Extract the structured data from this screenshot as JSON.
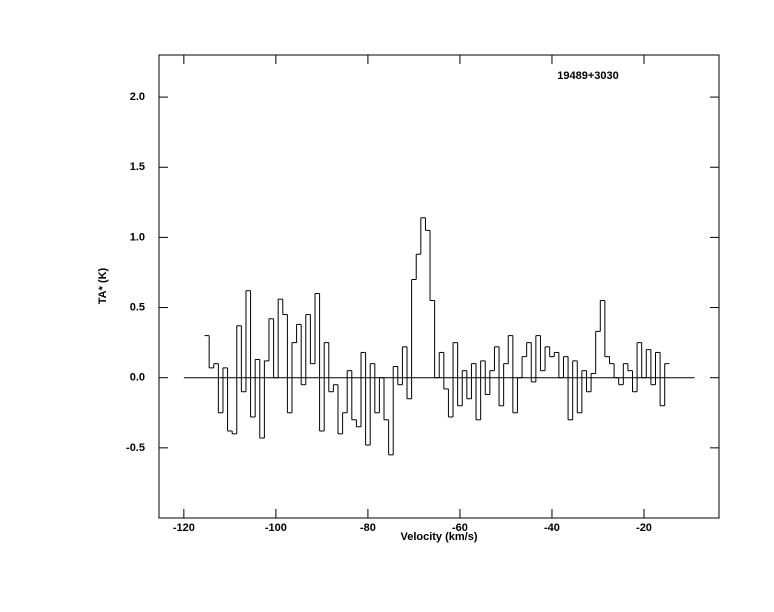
{
  "chart_data": {
    "type": "step",
    "title": "19489+3030",
    "x_label": "Velocity (km/s)",
    "y_label": "TA* (K)",
    "xlim": [
      -125.4,
      -3.7
    ],
    "ylim": [
      -1.0,
      2.3
    ],
    "xticks": [
      -120,
      -100,
      -80,
      -60,
      -40,
      -20
    ],
    "yticks": [
      -0.5,
      {
        "value": 0,
        "label": "0.0"
      },
      0.5,
      {
        "value": 1,
        "label": "1.0"
      },
      1.5,
      {
        "value": 2,
        "label": "2.0"
      }
    ],
    "hline": {
      "y": 0,
      "x": [
        -120,
        -9
      ]
    },
    "color": "#000000",
    "x": [
      -115,
      -114,
      -113,
      -112,
      -111,
      -110,
      -109,
      -108,
      -107,
      -106,
      -105,
      -104,
      -103,
      -102,
      -101,
      -100,
      -99,
      -98,
      -97,
      -96,
      -95,
      -94,
      -93,
      -92,
      -91,
      -90,
      -89,
      -88,
      -87,
      -86,
      -85,
      -84,
      -83,
      -82,
      -81,
      -80,
      -79,
      -78,
      -77,
      -76,
      -75,
      -74,
      -73,
      -72,
      -71,
      -70,
      -69,
      -68,
      -67,
      -66,
      -65,
      -64,
      -63,
      -62,
      -61,
      -60,
      -59,
      -58,
      -57,
      -56,
      -55,
      -54,
      -53,
      -52,
      -51,
      -50,
      -49,
      -48,
      -47,
      -46,
      -45,
      -44,
      -43,
      -42,
      -41,
      -40,
      -39,
      -38,
      -37,
      -36,
      -35,
      -34,
      -33,
      -32,
      -31,
      -30,
      -29,
      -28,
      -27,
      -26,
      -25,
      -24,
      -23,
      -22,
      -21,
      -20,
      -19,
      -18,
      -17,
      -16,
      -15
    ],
    "values": [
      0.3,
      0.07,
      0.1,
      -0.25,
      0.07,
      -0.38,
      -0.4,
      0.37,
      -0.1,
      0.62,
      -0.28,
      0.13,
      -0.43,
      0.12,
      0.42,
      0.0,
      0.56,
      0.45,
      -0.25,
      0.25,
      0.38,
      -0.05,
      0.45,
      0.1,
      0.6,
      -0.38,
      0.25,
      -0.1,
      -0.05,
      -0.4,
      -0.25,
      0.05,
      -0.3,
      -0.35,
      0.18,
      -0.48,
      0.1,
      -0.25,
      0.0,
      -0.3,
      -0.55,
      0.08,
      -0.05,
      0.22,
      -0.15,
      0.7,
      0.88,
      1.14,
      1.05,
      0.55,
      0.0,
      0.18,
      -0.08,
      -0.28,
      0.25,
      -0.2,
      0.05,
      -0.15,
      0.1,
      -0.3,
      0.12,
      -0.12,
      0.05,
      0.22,
      -0.2,
      0.1,
      0.3,
      -0.25,
      0.0,
      0.15,
      0.25,
      -0.03,
      0.3,
      0.05,
      0.22,
      0.15,
      0.18,
      0.0,
      0.15,
      -0.3,
      0.12,
      -0.25,
      0.05,
      -0.1,
      0.03,
      0.33,
      0.55,
      0.15,
      0.1,
      0.0,
      -0.05,
      0.1,
      0.05,
      -0.1,
      0.25,
      0.0,
      0.2,
      -0.05,
      0.18,
      -0.2,
      0.1
    ]
  }
}
